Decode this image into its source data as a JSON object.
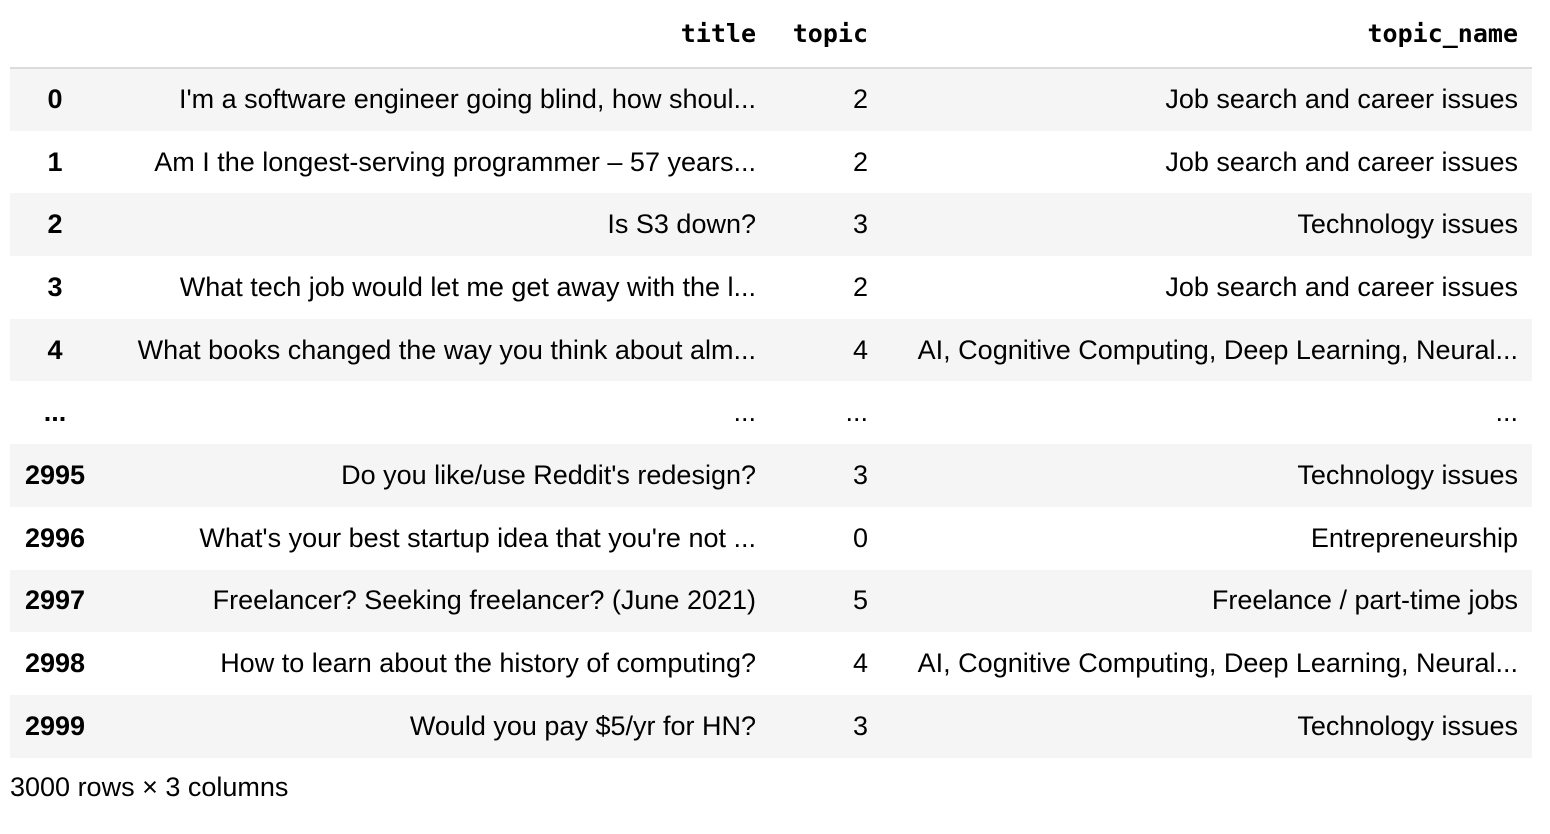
{
  "table": {
    "columns": [
      "",
      "title",
      "topic",
      "topic_name"
    ],
    "rows": [
      {
        "index": "0",
        "title": "I'm a software engineer going blind, how shoul...",
        "topic": "2",
        "topic_name": "Job search and career issues"
      },
      {
        "index": "1",
        "title": "Am I the longest-serving programmer – 57 years...",
        "topic": "2",
        "topic_name": "Job search and career issues"
      },
      {
        "index": "2",
        "title": "Is S3 down?",
        "topic": "3",
        "topic_name": "Technology issues"
      },
      {
        "index": "3",
        "title": "What tech job would let me get away with the l...",
        "topic": "2",
        "topic_name": "Job search and career issues"
      },
      {
        "index": "4",
        "title": "What books changed the way you think about alm...",
        "topic": "4",
        "topic_name": "AI, Cognitive Computing, Deep Learning, Neural..."
      },
      {
        "index": "...",
        "title": "...",
        "topic": "...",
        "topic_name": "..."
      },
      {
        "index": "2995",
        "title": "Do you like/use Reddit's redesign?",
        "topic": "3",
        "topic_name": "Technology issues"
      },
      {
        "index": "2996",
        "title": "What's your best startup idea that you're not ...",
        "topic": "0",
        "topic_name": "Entrepreneurship"
      },
      {
        "index": "2997",
        "title": "Freelancer? Seeking freelancer? (June 2021)",
        "topic": "5",
        "topic_name": "Freelance / part-time jobs"
      },
      {
        "index": "2998",
        "title": "How to learn about the history of computing?",
        "topic": "4",
        "topic_name": "AI, Cognitive Computing, Deep Learning, Neural..."
      },
      {
        "index": "2999",
        "title": "Would you pay $5/yr for HN?",
        "topic": "3",
        "topic_name": "Technology issues"
      }
    ]
  },
  "footer": {
    "shape_text": "3000 rows × 3 columns"
  }
}
